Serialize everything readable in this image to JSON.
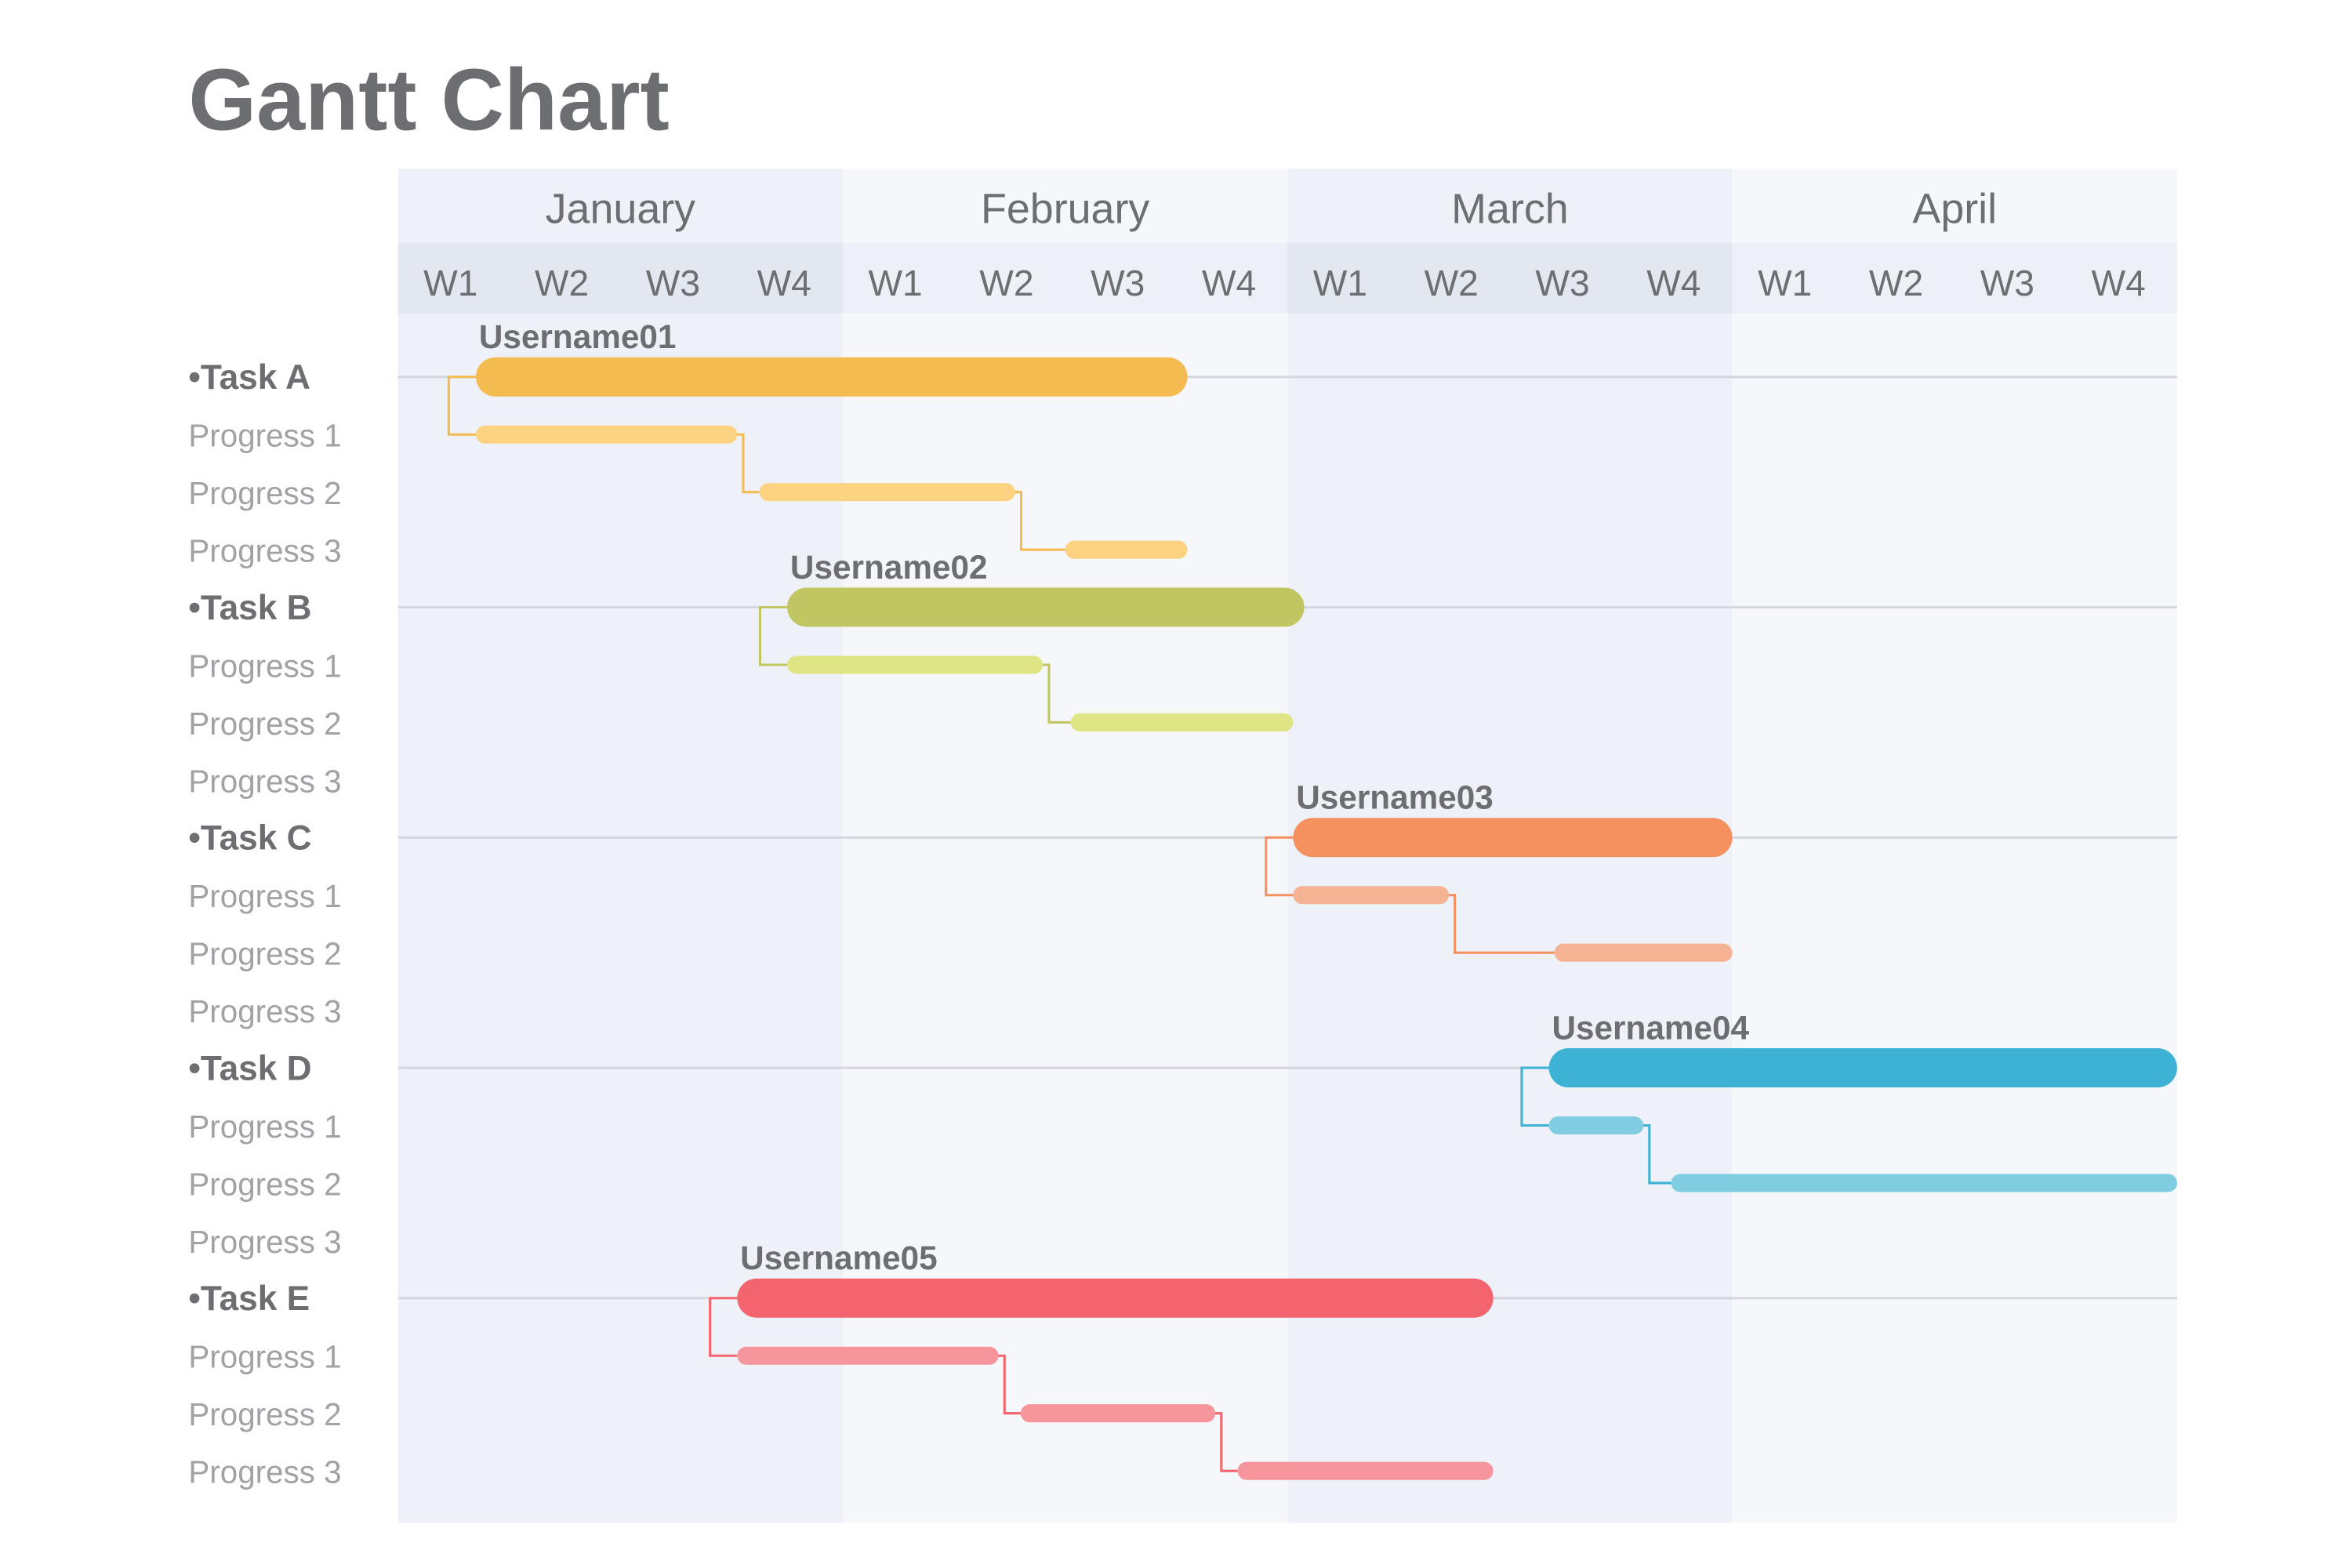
{
  "chart_data": {
    "type": "gantt",
    "title": "Gantt Chart",
    "months": [
      "January",
      "February",
      "March",
      "April"
    ],
    "weeks": [
      "W1",
      "W2",
      "W3",
      "W4"
    ],
    "x_unit": "weeks from start of January",
    "xlim": [
      0,
      16
    ],
    "tasks": [
      {
        "label": "•Task A",
        "user": "Username01",
        "color": "#F4BC50",
        "light": "#FDD382",
        "start": 0.7,
        "end": 7.1,
        "progress": [
          {
            "label": "Progress 1",
            "start": 0.7,
            "end": 3.05
          },
          {
            "label": "Progress 2",
            "start": 3.25,
            "end": 5.55
          },
          {
            "label": "Progress 3",
            "start": 6.0,
            "end": 7.1
          }
        ]
      },
      {
        "label": "•Task B",
        "user": "Username02",
        "color": "#C1C662",
        "light": "#DFE584",
        "start": 3.5,
        "end": 8.15,
        "progress": [
          {
            "label": "Progress 1",
            "start": 3.5,
            "end": 5.8
          },
          {
            "label": "Progress 2",
            "start": 6.05,
            "end": 8.05
          },
          {
            "label": "Progress 3",
            "start": null,
            "end": null
          }
        ]
      },
      {
        "label": "•Task C",
        "user": "Username03",
        "color": "#F5905F",
        "light": "#F6B394",
        "start": 8.05,
        "end": 12.0,
        "progress": [
          {
            "label": "Progress 1",
            "start": 8.05,
            "end": 9.45
          },
          {
            "label": "Progress 2",
            "start": 10.4,
            "end": 12.0
          },
          {
            "label": "Progress 3",
            "start": null,
            "end": null
          }
        ]
      },
      {
        "label": "•Task D",
        "user": "Username04",
        "color": "#3DB2D4",
        "light": "#80CDE2",
        "start": 10.35,
        "end": 16.0,
        "progress": [
          {
            "label": "Progress 1",
            "start": 10.35,
            "end": 11.2
          },
          {
            "label": "Progress 2",
            "start": 11.45,
            "end": 16.0
          },
          {
            "label": "Progress 3",
            "start": null,
            "end": null
          }
        ]
      },
      {
        "label": "•Task E",
        "user": "Username05",
        "color": "#F4646E",
        "light": "#F6969C",
        "start": 3.05,
        "end": 9.85,
        "progress": [
          {
            "label": "Progress 1",
            "start": 3.05,
            "end": 5.4
          },
          {
            "label": "Progress 2",
            "start": 5.6,
            "end": 7.35
          },
          {
            "label": "Progress 3",
            "start": 7.55,
            "end": 9.85
          }
        ]
      }
    ]
  }
}
